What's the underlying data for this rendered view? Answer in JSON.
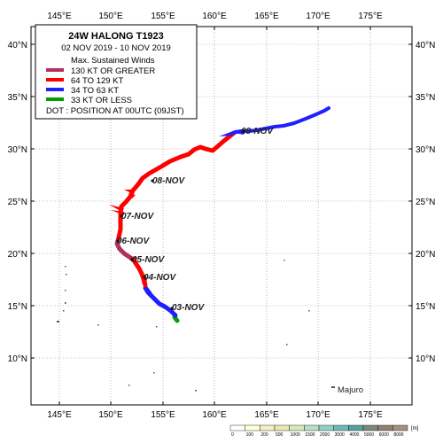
{
  "map": {
    "lon_ticks": [
      "145°E",
      "150°E",
      "155°E",
      "160°E",
      "165°E",
      "170°E",
      "175°E"
    ],
    "lat_ticks": [
      "40°N",
      "35°N",
      "30°N",
      "25°N",
      "20°N",
      "15°N",
      "10°N"
    ],
    "place_label": "Majuro"
  },
  "legend": {
    "title": "24W  HALONG  T1923",
    "period": "02 NOV 2019 - 10 NOV 2019",
    "winds_header": "Max. Sustained Winds",
    "items": [
      {
        "label": "130 KT OR GREATER",
        "color": "#b03060"
      },
      {
        "label": "64 TO 129 KT",
        "color": "#ff0000"
      },
      {
        "label": "34 TO 63 KT",
        "color": "#1f1fff"
      },
      {
        "label": "33 KT OR LESS",
        "color": "#00a000"
      }
    ],
    "dot_note": "DOT : POSITION AT 00UTC (09JST)"
  },
  "track_dates": [
    "03-NOV",
    "04-NOV",
    "05-NOV",
    "06-NOV",
    "07-NOV",
    "08-NOV",
    "09-NOV"
  ],
  "elevation_scale": {
    "labels": [
      "0",
      "100",
      "200",
      "500",
      "1000",
      "1500",
      "2000",
      "3000",
      "4000",
      "5000",
      "6000",
      "8000"
    ],
    "unit": "[m]",
    "colors": [
      "#ffffff",
      "#ffffd8",
      "#f4f0c0",
      "#e8e8b0",
      "#d8e8b8",
      "#b8e0c8",
      "#90d0c8",
      "#70b8b8",
      "#5aa0a0",
      "#7a8a7a",
      "#908070",
      "#a89080"
    ]
  }
}
